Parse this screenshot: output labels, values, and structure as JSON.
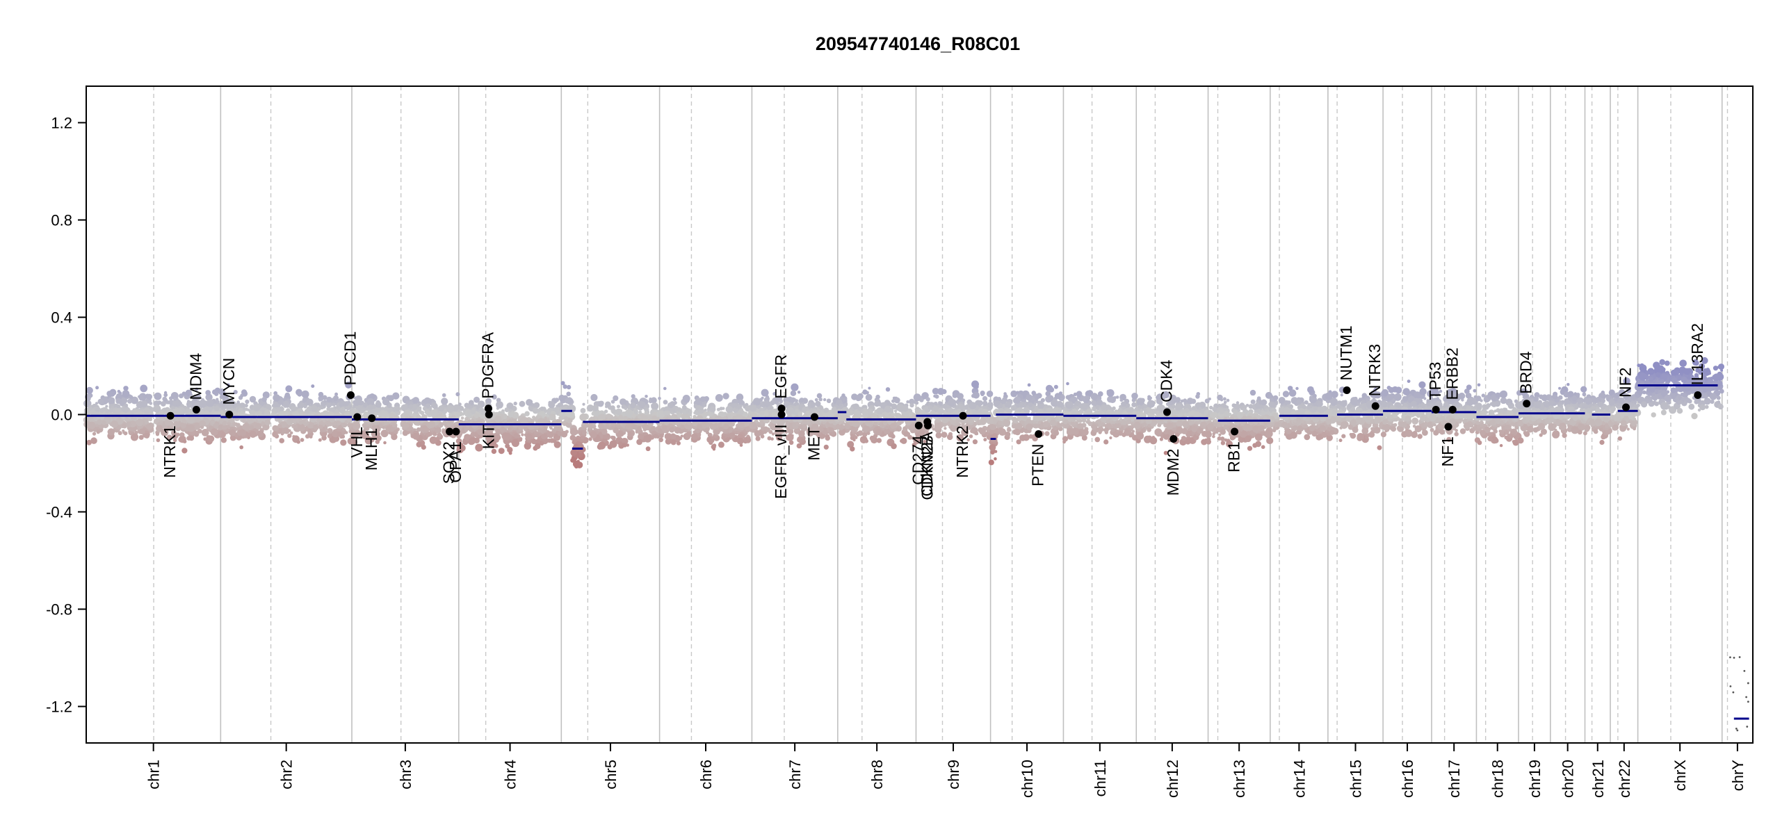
{
  "chart_data": {
    "type": "scatter",
    "title": "209547740146_R08C01",
    "xlabel": "",
    "ylabel": "",
    "ylim": [
      -1.35,
      1.35
    ],
    "y_ticks": [
      -1.2,
      -0.8,
      -0.4,
      0.0,
      0.4,
      0.8,
      1.2
    ],
    "y_tick_labels": [
      "-1.2",
      "-0.8",
      "-0.4",
      "0.0",
      "0.4",
      "0.8",
      "1.2"
    ],
    "grid": "vertical chromosome boundaries (solid) and centromeres (dashed)",
    "colors": {
      "gain": "#8f8fc4",
      "loss": "#b87c7c",
      "neutral": "#c8c8c8",
      "segment": "#00008b",
      "boundary": "#c0c0c0",
      "centromere": "#c8c8c8",
      "gene_marker": "#000000"
    },
    "chromosomes": [
      {
        "name": "chr1",
        "start": 0,
        "end": 249,
        "centromere": 125,
        "segments": [
          {
            "from": 0,
            "to": 249,
            "value": -0.005
          }
        ]
      },
      {
        "name": "chr2",
        "start": 249,
        "end": 492,
        "centromere": 342,
        "segments": [
          {
            "from": 249,
            "to": 492,
            "value": -0.01
          }
        ]
      },
      {
        "name": "chr3",
        "start": 492,
        "end": 690,
        "centromere": 583,
        "segments": [
          {
            "from": 492,
            "to": 690,
            "value": -0.02
          }
        ]
      },
      {
        "name": "chr4",
        "start": 690,
        "end": 880,
        "centromere": 740,
        "segments": [
          {
            "from": 690,
            "to": 880,
            "value": -0.04
          }
        ]
      },
      {
        "name": "chr5",
        "start": 880,
        "end": 1062,
        "centromere": 929,
        "segments": [
          {
            "from": 880,
            "to": 900,
            "value": 0.015
          },
          {
            "from": 900,
            "to": 920,
            "value": -0.14
          },
          {
            "from": 920,
            "to": 1062,
            "value": -0.03
          }
        ]
      },
      {
        "name": "chr6",
        "start": 1062,
        "end": 1233,
        "centromere": 1121,
        "segments": [
          {
            "from": 1062,
            "to": 1233,
            "value": -0.025
          }
        ]
      },
      {
        "name": "chr7",
        "start": 1233,
        "end": 1392,
        "centromere": 1293,
        "segments": [
          {
            "from": 1233,
            "to": 1392,
            "value": -0.015
          }
        ]
      },
      {
        "name": "chr8",
        "start": 1392,
        "end": 1537,
        "centromere": 1437,
        "segments": [
          {
            "from": 1392,
            "to": 1408,
            "value": 0.01
          },
          {
            "from": 1408,
            "to": 1537,
            "value": -0.02
          }
        ]
      },
      {
        "name": "chr9",
        "start": 1537,
        "end": 1675,
        "centromere": 1586,
        "segments": [
          {
            "from": 1537,
            "to": 1675,
            "value": -0.005
          }
        ]
      },
      {
        "name": "chr10",
        "start": 1675,
        "end": 1810,
        "centromere": 1715,
        "segments": [
          {
            "from": 1675,
            "to": 1685,
            "value": -0.1
          },
          {
            "from": 1685,
            "to": 1810,
            "value": 0.0
          }
        ]
      },
      {
        "name": "chr11",
        "start": 1810,
        "end": 1945,
        "centromere": 1863,
        "segments": [
          {
            "from": 1810,
            "to": 1945,
            "value": -0.005
          }
        ]
      },
      {
        "name": "chr12",
        "start": 1945,
        "end": 2078,
        "centromere": 1980,
        "segments": [
          {
            "from": 1945,
            "to": 2078,
            "value": -0.015
          }
        ]
      },
      {
        "name": "chr13",
        "start": 2078,
        "end": 2193,
        "centromere": 2096,
        "segments": [
          {
            "from": 2096,
            "to": 2193,
            "value": -0.025
          }
        ]
      },
      {
        "name": "chr14",
        "start": 2193,
        "end": 2300,
        "centromere": 2210,
        "segments": [
          {
            "from": 2210,
            "to": 2300,
            "value": -0.005
          }
        ]
      },
      {
        "name": "chr15",
        "start": 2300,
        "end": 2402,
        "centromere": 2317,
        "segments": [
          {
            "from": 2317,
            "to": 2402,
            "value": 0.0
          }
        ]
      },
      {
        "name": "chr16",
        "start": 2402,
        "end": 2492,
        "centromere": 2438,
        "segments": [
          {
            "from": 2402,
            "to": 2492,
            "value": 0.015
          }
        ]
      },
      {
        "name": "chr17",
        "start": 2492,
        "end": 2575,
        "centromere": 2516,
        "segments": [
          {
            "from": 2492,
            "to": 2575,
            "value": 0.01
          }
        ]
      },
      {
        "name": "chr18",
        "start": 2575,
        "end": 2653,
        "centromere": 2592,
        "segments": [
          {
            "from": 2575,
            "to": 2653,
            "value": -0.01
          }
        ]
      },
      {
        "name": "chr19",
        "start": 2653,
        "end": 2712,
        "centromere": 2679,
        "segments": [
          {
            "from": 2653,
            "to": 2712,
            "value": 0.005
          }
        ]
      },
      {
        "name": "chr20",
        "start": 2712,
        "end": 2776,
        "centromere": 2740,
        "segments": [
          {
            "from": 2712,
            "to": 2776,
            "value": 0.005
          }
        ]
      },
      {
        "name": "chr21",
        "start": 2776,
        "end": 2823,
        "centromere": 2789,
        "segments": [
          {
            "from": 2789,
            "to": 2823,
            "value": 0.0
          }
        ]
      },
      {
        "name": "chr22",
        "start": 2823,
        "end": 2874,
        "centromere": 2837,
        "segments": [
          {
            "from": 2837,
            "to": 2874,
            "value": 0.015
          }
        ]
      },
      {
        "name": "chrX",
        "start": 2874,
        "end": 3030,
        "centromere": 2935,
        "segments": [
          {
            "from": 2874,
            "to": 3022,
            "value": 0.12
          }
        ]
      },
      {
        "name": "chrY",
        "start": 3030,
        "end": 3087,
        "centromere": 3040,
        "segments": [
          {
            "from": 3052,
            "to": 3080,
            "value": -1.25
          }
        ]
      }
    ],
    "genes": [
      {
        "name": "NTRK1",
        "pos": 156,
        "value": -0.005,
        "label_side": "below"
      },
      {
        "name": "MDM4",
        "pos": 204,
        "value": 0.02,
        "label_side": "above"
      },
      {
        "name": "MYCN",
        "pos": 265,
        "value": 0.0,
        "label_side": "above"
      },
      {
        "name": "PDCD1",
        "pos": 490,
        "value": 0.08,
        "label_side": "above"
      },
      {
        "name": "VHL",
        "pos": 502,
        "value": -0.01,
        "label_side": "below"
      },
      {
        "name": "MLH1",
        "pos": 529,
        "value": -0.015,
        "label_side": "below"
      },
      {
        "name": "SOX2",
        "pos": 673,
        "value": -0.07,
        "label_side": "below"
      },
      {
        "name": "OPA1",
        "pos": 685,
        "value": -0.07,
        "label_side": "below"
      },
      {
        "name": "PDGFRA",
        "pos": 745,
        "value": 0.025,
        "label_side": "above"
      },
      {
        "name": "KIT",
        "pos": 746,
        "value": 0.0,
        "label_side": "below"
      },
      {
        "name": "EGFR",
        "pos": 1288,
        "value": 0.025,
        "label_side": "above"
      },
      {
        "name": "EGFR_vIII",
        "pos": 1288,
        "value": 0.0,
        "label_side": "below"
      },
      {
        "name": "MET",
        "pos": 1349,
        "value": -0.01,
        "label_side": "below"
      },
      {
        "name": "CD274",
        "pos": 1542,
        "value": -0.045,
        "label_side": "below"
      },
      {
        "name": "CDKN2A",
        "pos": 1558,
        "value": -0.03,
        "label_side": "below"
      },
      {
        "name": "CDKN2B",
        "pos": 1559,
        "value": -0.045,
        "label_side": "below"
      },
      {
        "name": "NTRK2",
        "pos": 1624,
        "value": -0.005,
        "label_side": "below"
      },
      {
        "name": "PTEN",
        "pos": 1764,
        "value": -0.08,
        "label_side": "below"
      },
      {
        "name": "CDK4",
        "pos": 2002,
        "value": 0.01,
        "label_side": "above"
      },
      {
        "name": "MDM2",
        "pos": 2014,
        "value": -0.1,
        "label_side": "below"
      },
      {
        "name": "RB1",
        "pos": 2127,
        "value": -0.07,
        "label_side": "below"
      },
      {
        "name": "NUTM1",
        "pos": 2335,
        "value": 0.1,
        "label_side": "above"
      },
      {
        "name": "NTRK3",
        "pos": 2388,
        "value": 0.035,
        "label_side": "above"
      },
      {
        "name": "TP53",
        "pos": 2500,
        "value": 0.02,
        "label_side": "above"
      },
      {
        "name": "ERBB2",
        "pos": 2531,
        "value": 0.02,
        "label_side": "above"
      },
      {
        "name": "NF1",
        "pos": 2523,
        "value": -0.05,
        "label_side": "below"
      },
      {
        "name": "BRD4",
        "pos": 2668,
        "value": 0.045,
        "label_side": "above"
      },
      {
        "name": "NF2",
        "pos": 2852,
        "value": 0.03,
        "label_side": "above"
      },
      {
        "name": "IL13RA2",
        "pos": 2985,
        "value": 0.08,
        "label_side": "above"
      }
    ]
  }
}
